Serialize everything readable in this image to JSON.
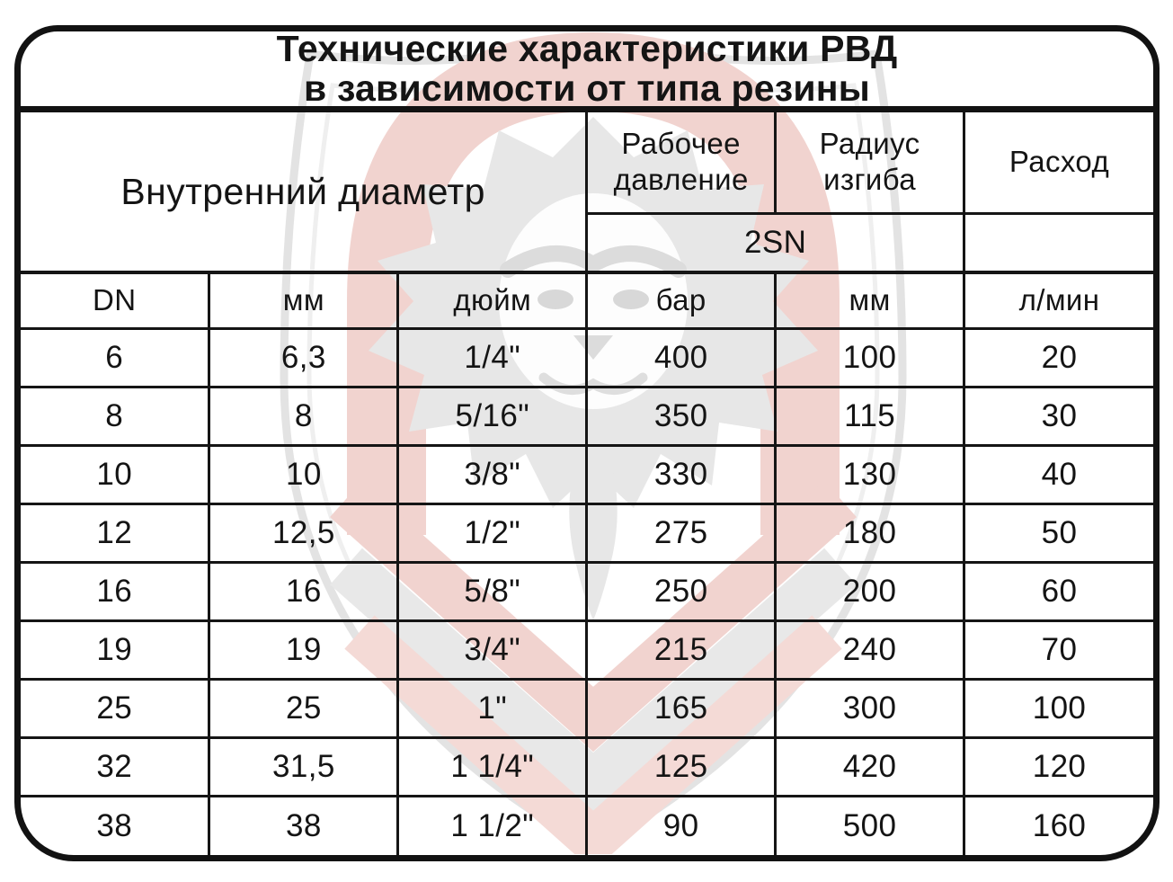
{
  "title": {
    "line1": "Технические характеристики РВД",
    "line2": "в зависимости от типа резины"
  },
  "chart_data": {
    "type": "table",
    "title": "Технические характеристики РВД в зависимости от типа резины",
    "column_groups": [
      "Внутренний диаметр",
      "Рабочее давление",
      "Радиус изгиба",
      "Расход"
    ],
    "hose_type": "2SN",
    "columns": [
      "DN",
      "мм",
      "дюйм",
      "бар",
      "мм",
      "л/мин"
    ],
    "rows": [
      [
        "6",
        "6,3",
        "1/4\"",
        "400",
        "100",
        "20"
      ],
      [
        "8",
        "8",
        "5/16\"",
        "350",
        "115",
        "30"
      ],
      [
        "10",
        "10",
        "3/8\"",
        "330",
        "130",
        "40"
      ],
      [
        "12",
        "12,5",
        "1/2\"",
        "275",
        "180",
        "50"
      ],
      [
        "16",
        "16",
        "5/8\"",
        "250",
        "200",
        "60"
      ],
      [
        "19",
        "19",
        "3/4\"",
        "215",
        "240",
        "70"
      ],
      [
        "25",
        "25",
        "1\"",
        "165",
        "300",
        "100"
      ],
      [
        "32",
        "31,5",
        "1 1/4\"",
        "125",
        "420",
        "120"
      ],
      [
        "38",
        "38",
        "1 1/2\"",
        "90",
        "500",
        "160"
      ]
    ]
  },
  "colors": {
    "border": "#121212",
    "text": "#141414",
    "background": "#ffffff",
    "watermark_gray": "#e7e7e7",
    "watermark_red": "#f1d3cf"
  },
  "watermark": {
    "name": "lion-shield-logo"
  }
}
